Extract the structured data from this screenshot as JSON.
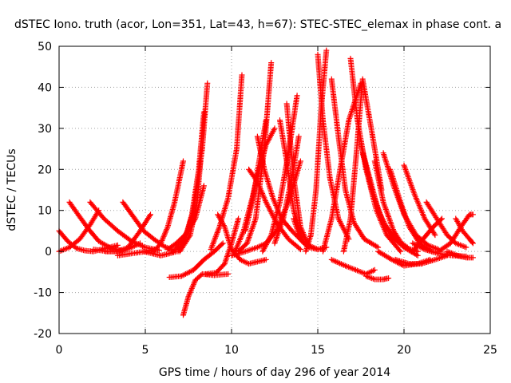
{
  "chart_data": {
    "type": "scatter",
    "title": "dSTEC Iono. truth (acor, Lon=351, Lat=43, h=67): STEC-STEC_elemax in phase cont. a",
    "xlabel": "GPS time / hours of day 296 of year 2014",
    "ylabel": "dSTEC  / TECUs",
    "xlim": [
      0,
      25
    ],
    "ylim": [
      -20,
      50
    ],
    "xticks": [
      0,
      5,
      10,
      15,
      20,
      25
    ],
    "yticks": [
      -20,
      -10,
      0,
      10,
      20,
      30,
      40,
      50
    ],
    "grid": true,
    "legend": "none",
    "marker": "plus",
    "color": "#ff0000",
    "series": [
      {
        "x": [
          0.0,
          0.5,
          1.0,
          1.5,
          2.0,
          2.7,
          3.4
        ],
        "y": [
          5,
          2.5,
          0.8,
          0.2,
          0,
          0.8,
          1.5
        ]
      },
      {
        "x": [
          0.0,
          0.6,
          1.2,
          1.8,
          2.3
        ],
        "y": [
          0,
          1,
          3,
          6.5,
          10
        ]
      },
      {
        "x": [
          0.6,
          1.1,
          1.7,
          2.3,
          3.0,
          3.6
        ],
        "y": [
          12,
          9,
          5.5,
          2.5,
          0.8,
          0.3
        ]
      },
      {
        "x": [
          1.8,
          2.6,
          3.4,
          4.2,
          5.0,
          5.8
        ],
        "y": [
          12,
          8,
          5,
          2.5,
          1,
          0.3
        ]
      },
      {
        "x": [
          2.0,
          2.8,
          3.6,
          4.2,
          4.7
        ],
        "y": [
          0.5,
          0,
          0,
          1,
          2
        ]
      },
      {
        "x": [
          2.7,
          3.4,
          4.0,
          4.7,
          5.3
        ],
        "y": [
          0,
          0,
          1,
          5,
          9
        ]
      },
      {
        "x": [
          3.7,
          4.3,
          4.9,
          5.5,
          6.1,
          6.5
        ],
        "y": [
          12,
          8.5,
          5,
          3,
          1.2,
          0.5
        ]
      },
      {
        "x": [
          3.4,
          4.2,
          5.0,
          5.6
        ],
        "y": [
          -1,
          -0.5,
          0,
          0.5
        ]
      },
      {
        "x": [
          4.9,
          5.4,
          5.9,
          6.4,
          6.8
        ],
        "y": [
          0,
          -0.5,
          -1,
          -0.5,
          0
        ]
      },
      {
        "x": [
          5.5,
          5.9,
          6.3,
          6.7,
          7.0,
          7.2
        ],
        "y": [
          0,
          2,
          6,
          12,
          18,
          22
        ]
      },
      {
        "x": [
          6.3,
          6.8,
          7.3,
          7.9,
          8.4
        ],
        "y": [
          0.5,
          2,
          4,
          8,
          16
        ]
      },
      {
        "x": [
          6.6,
          7.3,
          7.8,
          8.3,
          8.6
        ],
        "y": [
          0,
          3,
          10,
          25,
          41
        ]
      },
      {
        "x": [
          6.9,
          7.3,
          7.7,
          8.1,
          8.4
        ],
        "y": [
          0,
          3,
          9,
          20,
          34
        ]
      },
      {
        "x": [
          7.0,
          7.6,
          8.0,
          8.2
        ],
        "y": [
          0,
          4,
          12,
          22
        ]
      },
      {
        "x": [
          6.4,
          7.1,
          7.8,
          8.4,
          9.0,
          9.5
        ],
        "y": [
          -6.3,
          -6,
          -4.5,
          -2,
          0,
          2
        ]
      },
      {
        "x": [
          7.2,
          7.5,
          7.9,
          8.3,
          9.0,
          9.8
        ],
        "y": [
          -15.5,
          -11,
          -7,
          -5.5,
          -5.8,
          -5.5
        ]
      },
      {
        "x": [
          8.5,
          9.1,
          9.6,
          10.0,
          10.4
        ],
        "y": [
          -5.5,
          -5.2,
          -3,
          2,
          8
        ]
      },
      {
        "x": [
          8.8,
          9.3,
          9.8,
          10.3,
          10.6
        ],
        "y": [
          0.5,
          6,
          13,
          25,
          43
        ]
      },
      {
        "x": [
          9.2,
          9.6,
          10.0,
          10.5,
          11.0,
          11.5,
          12.0
        ],
        "y": [
          9,
          6,
          0.5,
          -2,
          -3,
          -2.5,
          -2
        ]
      },
      {
        "x": [
          10.4,
          10.9,
          11.4,
          11.9,
          12.3
        ],
        "y": [
          0,
          2,
          8,
          25,
          46
        ]
      },
      {
        "x": [
          10.8,
          11.2,
          11.6,
          12.0
        ],
        "y": [
          5,
          12,
          22,
          32
        ]
      },
      {
        "x": [
          10.2,
          10.7,
          11.2,
          11.6,
          12.0,
          12.5
        ],
        "y": [
          0,
          5,
          13,
          20,
          26,
          30
        ]
      },
      {
        "x": [
          11.5,
          11.9,
          12.4,
          12.9,
          13.5,
          14.2,
          15.0
        ],
        "y": [
          28,
          20,
          13,
          8,
          5,
          2,
          0.5
        ]
      },
      {
        "x": [
          11.0,
          11.5,
          12.0,
          12.6,
          13.3,
          14.0
        ],
        "y": [
          20,
          17,
          12,
          7,
          3,
          0.5
        ]
      },
      {
        "x": [
          11.8,
          12.3,
          12.8,
          13.3,
          13.8
        ],
        "y": [
          0,
          4,
          12,
          24,
          38
        ]
      },
      {
        "x": [
          12.5,
          13.0,
          13.5,
          13.9
        ],
        "y": [
          2,
          8,
          18,
          28
        ]
      },
      {
        "x": [
          10.0,
          10.8,
          11.5,
          12.0,
          12.6,
          13.3,
          14.0
        ],
        "y": [
          -1,
          0,
          1,
          2,
          5,
          12,
          22
        ]
      },
      {
        "x": [
          12.8,
          13.2,
          13.6,
          14.1
        ],
        "y": [
          32,
          22,
          10,
          3
        ]
      },
      {
        "x": [
          13.2,
          13.6,
          14.0,
          14.5
        ],
        "y": [
          36,
          18,
          6,
          1
        ]
      },
      {
        "x": [
          13.6,
          14.0,
          14.5,
          15.0,
          15.5
        ],
        "y": [
          8,
          3,
          1,
          0.5,
          1
        ]
      },
      {
        "x": [
          14.3,
          14.6,
          14.9,
          15.2,
          15.5
        ],
        "y": [
          0,
          4,
          15,
          35,
          49
        ]
      },
      {
        "x": [
          15.0,
          15.3,
          15.7,
          16.2,
          16.8
        ],
        "y": [
          48,
          32,
          18,
          8,
          3
        ]
      },
      {
        "x": [
          15.3,
          15.8,
          16.3,
          16.8,
          17.5
        ],
        "y": [
          0,
          8,
          20,
          32,
          41
        ]
      },
      {
        "x": [
          15.8,
          16.2,
          16.6,
          17.1,
          17.7,
          18.5
        ],
        "y": [
          42,
          28,
          15,
          7,
          3,
          1
        ]
      },
      {
        "x": [
          16.5,
          16.9,
          17.2,
          17.6,
          18.1,
          18.7
        ],
        "y": [
          0,
          8,
          22,
          42,
          30,
          15
        ]
      },
      {
        "x": [
          16.9,
          17.3,
          17.8,
          18.4,
          19.0,
          19.8
        ],
        "y": [
          47,
          32,
          20,
          10,
          4,
          0
        ]
      },
      {
        "x": [
          15.8,
          16.6,
          17.2,
          17.8,
          18.3
        ],
        "y": [
          -2,
          -3.5,
          -4.5,
          -5.5,
          -4.5
        ]
      },
      {
        "x": [
          17.8,
          18.3,
          18.8,
          19.1
        ],
        "y": [
          -6,
          -6.8,
          -6.8,
          -6.5
        ]
      },
      {
        "x": [
          17.5,
          18.0,
          18.5,
          19.2,
          20.0,
          20.8
        ],
        "y": [
          26,
          18,
          10,
          4,
          1,
          0
        ]
      },
      {
        "x": [
          17.6,
          18.2,
          18.8,
          19.5,
          20.2
        ],
        "y": [
          24,
          14,
          7,
          3,
          1
        ]
      },
      {
        "x": [
          18.3,
          18.8,
          19.4,
          20.0,
          20.8
        ],
        "y": [
          22,
          12,
          5,
          1,
          -1
        ]
      },
      {
        "x": [
          18.8,
          19.4,
          20.0,
          20.7,
          21.4,
          22.0
        ],
        "y": [
          24,
          16,
          9,
          4,
          1.5,
          0.5
        ]
      },
      {
        "x": [
          19.2,
          19.8,
          20.3,
          20.9,
          21.6
        ],
        "y": [
          20,
          12,
          6,
          2,
          0
        ]
      },
      {
        "x": [
          20.0,
          20.6,
          21.2,
          21.8
        ],
        "y": [
          21,
          14,
          8,
          4
        ]
      },
      {
        "x": [
          18.5,
          19.3,
          20.0,
          20.8,
          21.5
        ],
        "y": [
          0,
          -2,
          -3.5,
          -3,
          -2
        ]
      },
      {
        "x": [
          19.5,
          20.3,
          21.0,
          21.8,
          22.5
        ],
        "y": [
          -2,
          -3,
          -3,
          -2,
          -1
        ]
      },
      {
        "x": [
          21.3,
          21.9,
          22.5,
          23.0,
          23.6
        ],
        "y": [
          12,
          8,
          4,
          2,
          1
        ]
      },
      {
        "x": [
          20.5,
          21.1,
          21.7,
          22.2
        ],
        "y": [
          0,
          3,
          6,
          8
        ]
      },
      {
        "x": [
          20.5,
          21.2,
          22.0,
          22.8,
          23.6
        ],
        "y": [
          2,
          0.5,
          -0.5,
          -1,
          -1.2
        ]
      },
      {
        "x": [
          22.0,
          22.7,
          23.3,
          23.8,
          24.0
        ],
        "y": [
          0,
          2,
          6,
          9,
          9
        ]
      },
      {
        "x": [
          23.0,
          23.4,
          23.8,
          24.0
        ],
        "y": [
          8,
          5,
          3,
          2
        ]
      },
      {
        "x": [
          22.5,
          23.1,
          23.6,
          24.0
        ],
        "y": [
          0,
          -1,
          -1.5,
          -1.5
        ]
      }
    ]
  }
}
